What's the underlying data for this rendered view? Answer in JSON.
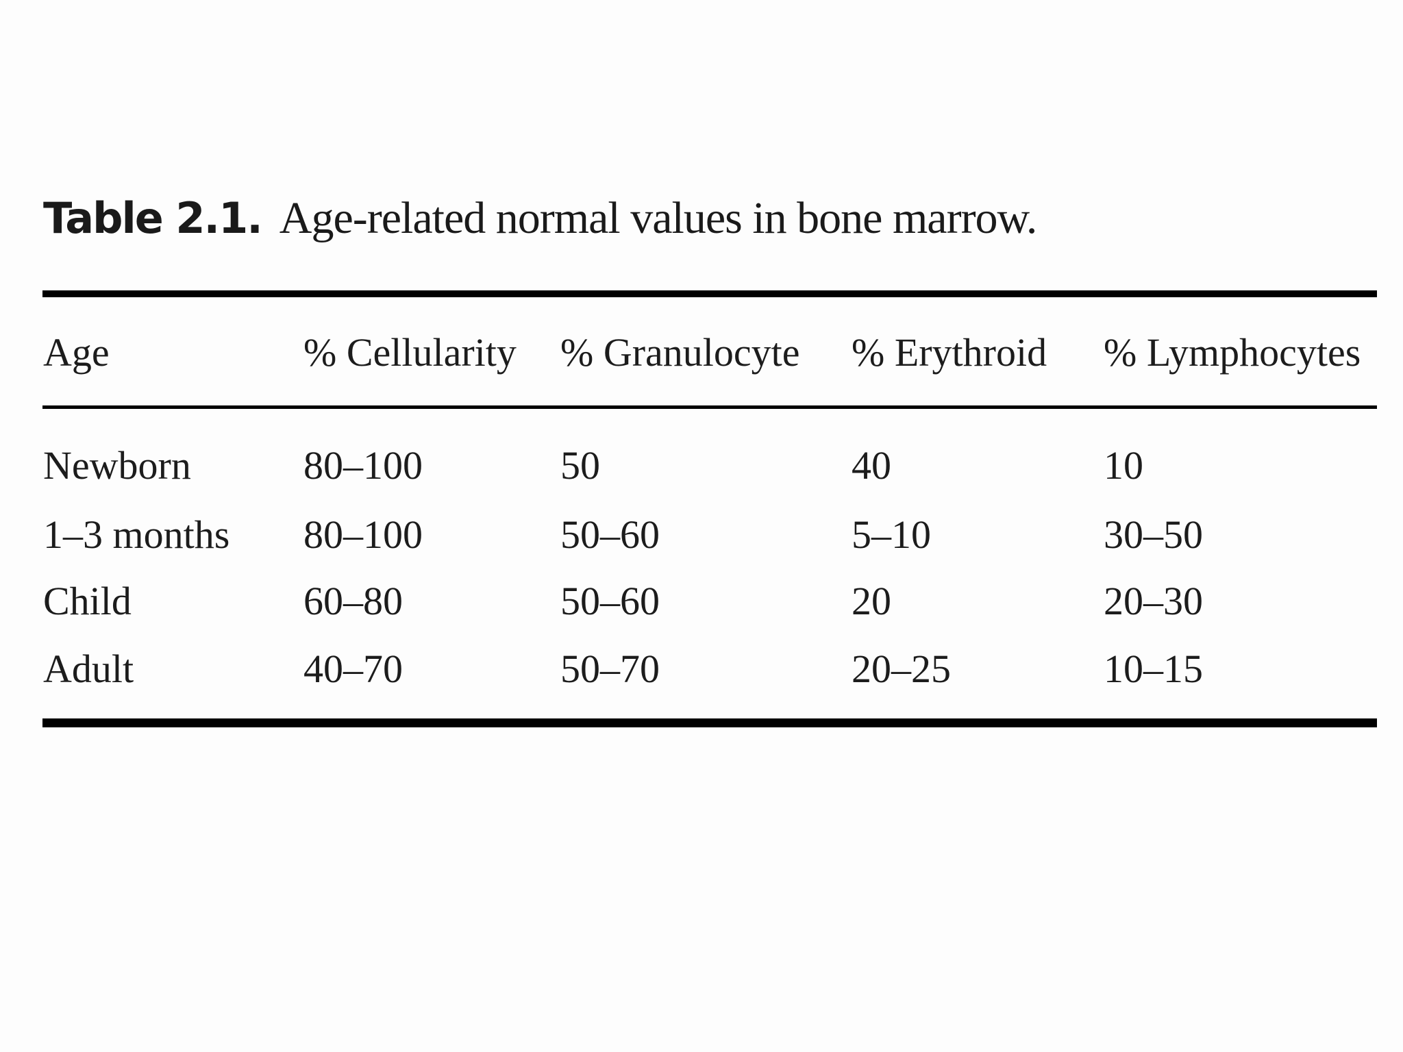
{
  "caption": {
    "label": "Table 2.1.",
    "text": "Age-related normal values in bone marrow."
  },
  "table": {
    "columns": [
      "Age",
      "% Cellularity",
      "% Granulocyte",
      "% Erythroid",
      "% Lymphocytes"
    ],
    "rows": [
      [
        "Newborn",
        "80–100",
        "50",
        "40",
        "10"
      ],
      [
        "1–3 months",
        "80–100",
        "50–60",
        "5–10",
        "30–50"
      ],
      [
        "Child",
        "60–80",
        "50–60",
        "20",
        "20–30"
      ],
      [
        "Adult",
        "40–70",
        "50–70",
        "20–25",
        "10–15"
      ]
    ]
  }
}
